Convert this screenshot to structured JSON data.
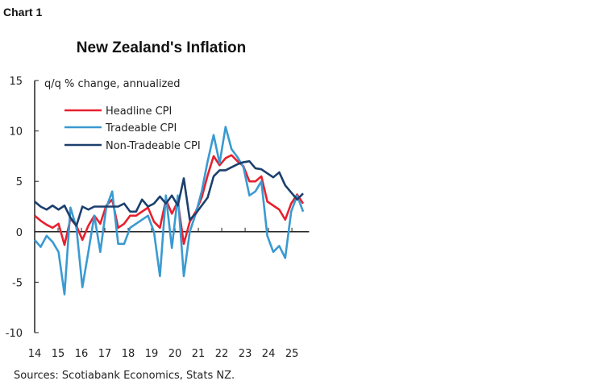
{
  "chart_label": "Chart 1",
  "source": "Sources: Scotiabank Economics, Stats NZ.",
  "chart_data": {
    "type": "line",
    "title": "New Zealand's Inflation",
    "ylabel": "q/q % change, annualized",
    "xlabel": "",
    "ylim": [
      -10,
      15
    ],
    "yticks": [
      15,
      10,
      5,
      0,
      -5,
      -10
    ],
    "xtick_labels": [
      "14",
      "15",
      "16",
      "17",
      "18",
      "19",
      "20",
      "21",
      "22",
      "23",
      "24",
      "25"
    ],
    "x_start": "2014Q1",
    "frequency": "quarterly",
    "grid": false,
    "legend": "top-left",
    "series": [
      {
        "name": "Headline CPI",
        "color": "#e8202e",
        "values": [
          1.6,
          1.1,
          0.7,
          0.4,
          0.8,
          -1.3,
          1.3,
          0.6,
          -0.8,
          0.6,
          1.6,
          0.8,
          2.6,
          3.2,
          0.4,
          0.8,
          1.6,
          1.6,
          2.0,
          2.4,
          1.0,
          0.4,
          3.2,
          1.8,
          3.0,
          -1.2,
          1.0,
          2.0,
          3.4,
          5.6,
          7.5,
          6.6,
          7.3,
          7.6,
          7.0,
          6.5,
          5.0,
          5.0,
          5.5,
          3.0,
          2.6,
          2.2,
          1.2,
          2.8,
          3.7,
          2.8
        ]
      },
      {
        "name": "Tradeable CPI",
        "color": "#3a9ad1",
        "values": [
          -0.8,
          -1.5,
          -0.4,
          -1.0,
          -2.0,
          -6.2,
          2.4,
          0.4,
          -5.5,
          -2.0,
          1.6,
          -2.0,
          2.4,
          4.0,
          -1.2,
          -1.2,
          0.4,
          0.8,
          1.2,
          1.6,
          0.0,
          -4.4,
          3.6,
          -1.6,
          3.6,
          -4.4,
          0.0,
          1.8,
          4.0,
          7.0,
          9.6,
          6.8,
          10.4,
          8.2,
          7.4,
          6.4,
          3.6,
          4.0,
          5.0,
          -0.4,
          -2.0,
          -1.4,
          -2.6,
          2.0,
          3.6,
          2.0
        ]
      },
      {
        "name": "Non-Tradeable CPI",
        "color": "#1c3f6e",
        "values": [
          3.0,
          2.5,
          2.2,
          2.6,
          2.2,
          2.6,
          1.4,
          0.6,
          2.5,
          2.2,
          2.5,
          2.5,
          2.5,
          2.5,
          2.5,
          2.8,
          2.0,
          2.0,
          3.2,
          2.5,
          2.8,
          3.5,
          2.8,
          3.6,
          2.6,
          5.3,
          1.2,
          1.8,
          2.6,
          3.4,
          5.5,
          6.1,
          6.1,
          6.4,
          6.7,
          6.9,
          7.0,
          6.3,
          6.2,
          5.8,
          5.4,
          5.9,
          4.6,
          3.9,
          3.2,
          3.8
        ]
      }
    ]
  }
}
